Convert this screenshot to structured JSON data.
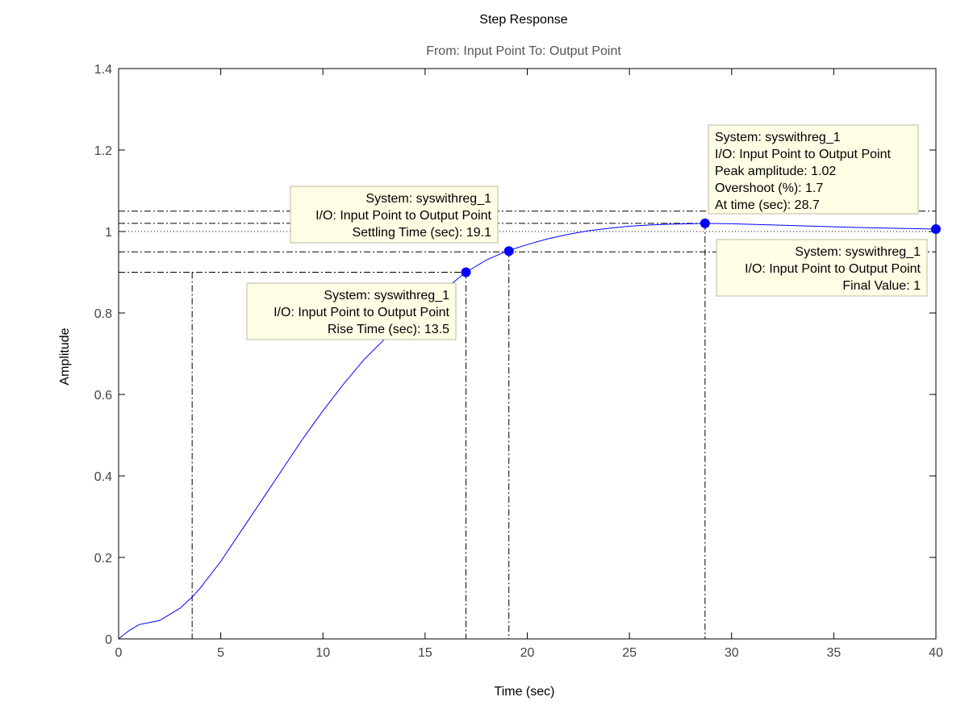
{
  "chart_data": {
    "type": "line",
    "title": "Step Response",
    "subtitle": "From: Input Point  To: Output Point",
    "xlabel": "Time (sec)",
    "ylabel": "Amplitude",
    "xlim": [
      0,
      40
    ],
    "ylim": [
      0,
      1.4
    ],
    "xticks": [
      0,
      5,
      10,
      15,
      20,
      25,
      30,
      35,
      40
    ],
    "yticks": [
      0,
      0.2,
      0.4,
      0.6,
      0.8,
      1,
      1.2,
      1.4
    ],
    "grid": false,
    "line_color": "#0000ff",
    "marker_color": "#0000ff",
    "series": [
      {
        "x": [
          0,
          0.5,
          1,
          1.5,
          2,
          3,
          3.6,
          4,
          5,
          6,
          7,
          8,
          9,
          10,
          11,
          12,
          13,
          14,
          15,
          16,
          17,
          18,
          19,
          20,
          21,
          22,
          23,
          24,
          25,
          26,
          27,
          28,
          28.7,
          30,
          32,
          34,
          36,
          38,
          40
        ],
        "y": [
          0,
          0.02,
          0.035,
          0.04,
          0.045,
          0.075,
          0.103,
          0.125,
          0.19,
          0.265,
          0.34,
          0.415,
          0.49,
          0.56,
          0.625,
          0.685,
          0.735,
          0.785,
          0.825,
          0.86,
          0.9,
          0.93,
          0.952,
          0.968,
          0.982,
          0.993,
          1.002,
          1.008,
          1.013,
          1.016,
          1.018,
          1.019,
          1.02,
          1.019,
          1.016,
          1.013,
          1.01,
          1.008,
          1.006
        ]
      }
    ],
    "reference_lines": {
      "final_value": 1,
      "settling_upper": 1.05,
      "settling_lower": 0.95,
      "rise_lower": 0.1,
      "rise_upper": 0.9,
      "rise_start_time": 3.6,
      "rise_end_time": 17.0
    },
    "characteristics": [
      {
        "id": "peak",
        "x": 28.7,
        "y": 1.02,
        "lines": [
          "System: syswithreg_1",
          "I/O: Input Point to Output Point",
          "Peak amplitude: 1.02",
          "Overshoot (%): 1.7",
          "At time (sec): 28.7"
        ]
      },
      {
        "id": "settling",
        "x": 19.1,
        "y": 0.952,
        "lines": [
          "System: syswithreg_1",
          "I/O: Input Point to Output Point",
          "Settling Time (sec): 19.1"
        ]
      },
      {
        "id": "rise",
        "x": 17.0,
        "y": 0.9,
        "lines": [
          "System: syswithreg_1",
          "I/O: Input Point to Output Point",
          "Rise Time (sec): 13.5"
        ]
      },
      {
        "id": "final",
        "x": 40,
        "y": 1.006,
        "lines": [
          "System: syswithreg_1",
          "I/O: Input Point to Output Point",
          "Final Value: 1"
        ]
      }
    ]
  }
}
